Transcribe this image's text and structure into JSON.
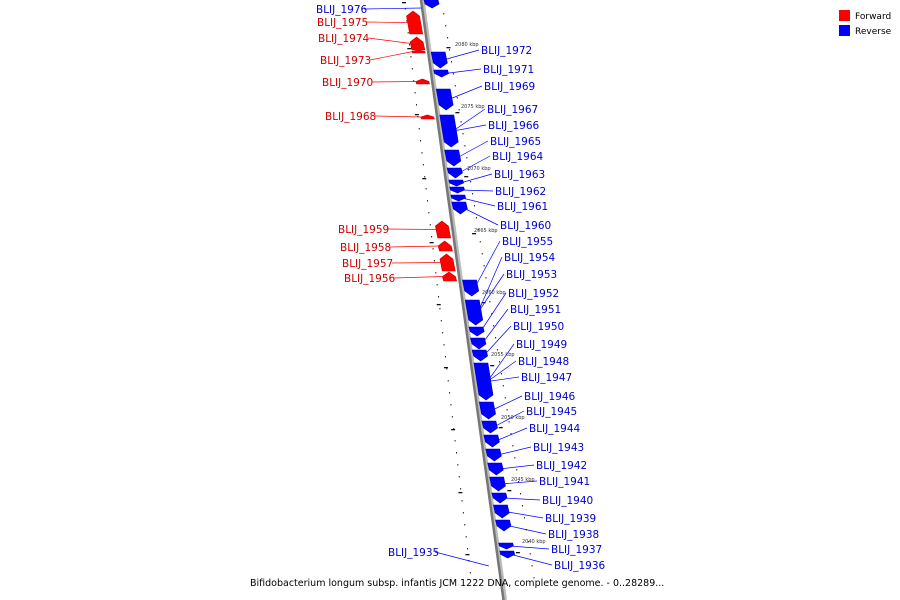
{
  "legend": {
    "forward_label": "Forward",
    "reverse_label": "Reverse",
    "forward_color": "#ff0000",
    "reverse_color": "#0000ff"
  },
  "caption": "Bifidobacterium longum subsp. infantis JCM 1222 DNA, complete genome. - 0..28289...",
  "scale_ticks": [
    "2080 kbp",
    "2075 kbp",
    "2070 kbp",
    "2065 kbp",
    "2060 kbp",
    "2055 kbp",
    "2050 kbp",
    "2045 kbp",
    "2040 kbp"
  ],
  "forward_genes": [
    "BLIJ_1975",
    "BLIJ_1974",
    "BLIJ_1973",
    "BLIJ_1970",
    "BLIJ_1968",
    "BLIJ_1959",
    "BLIJ_1958",
    "BLIJ_1957",
    "BLIJ_1956"
  ],
  "reverse_genes": [
    "BLIJ_1976",
    "BLIJ_1972",
    "BLIJ_1971",
    "BLIJ_1969",
    "BLIJ_1967",
    "BLIJ_1966",
    "BLIJ_1965",
    "BLIJ_1964",
    "BLIJ_1963",
    "BLIJ_1962",
    "BLIJ_1961",
    "BLIJ_1960",
    "BLIJ_1955",
    "BLIJ_1954",
    "BLIJ_1953",
    "BLIJ_1952",
    "BLIJ_1951",
    "BLIJ_1950",
    "BLIJ_1949",
    "BLIJ_1948",
    "BLIJ_1947",
    "BLIJ_1946",
    "BLIJ_1945",
    "BLIJ_1944",
    "BLIJ_1943",
    "BLIJ_1942",
    "BLIJ_1941",
    "BLIJ_1940",
    "BLIJ_1939",
    "BLIJ_1938",
    "BLIJ_1937",
    "BLIJ_1936",
    "BLIJ_1935"
  ]
}
